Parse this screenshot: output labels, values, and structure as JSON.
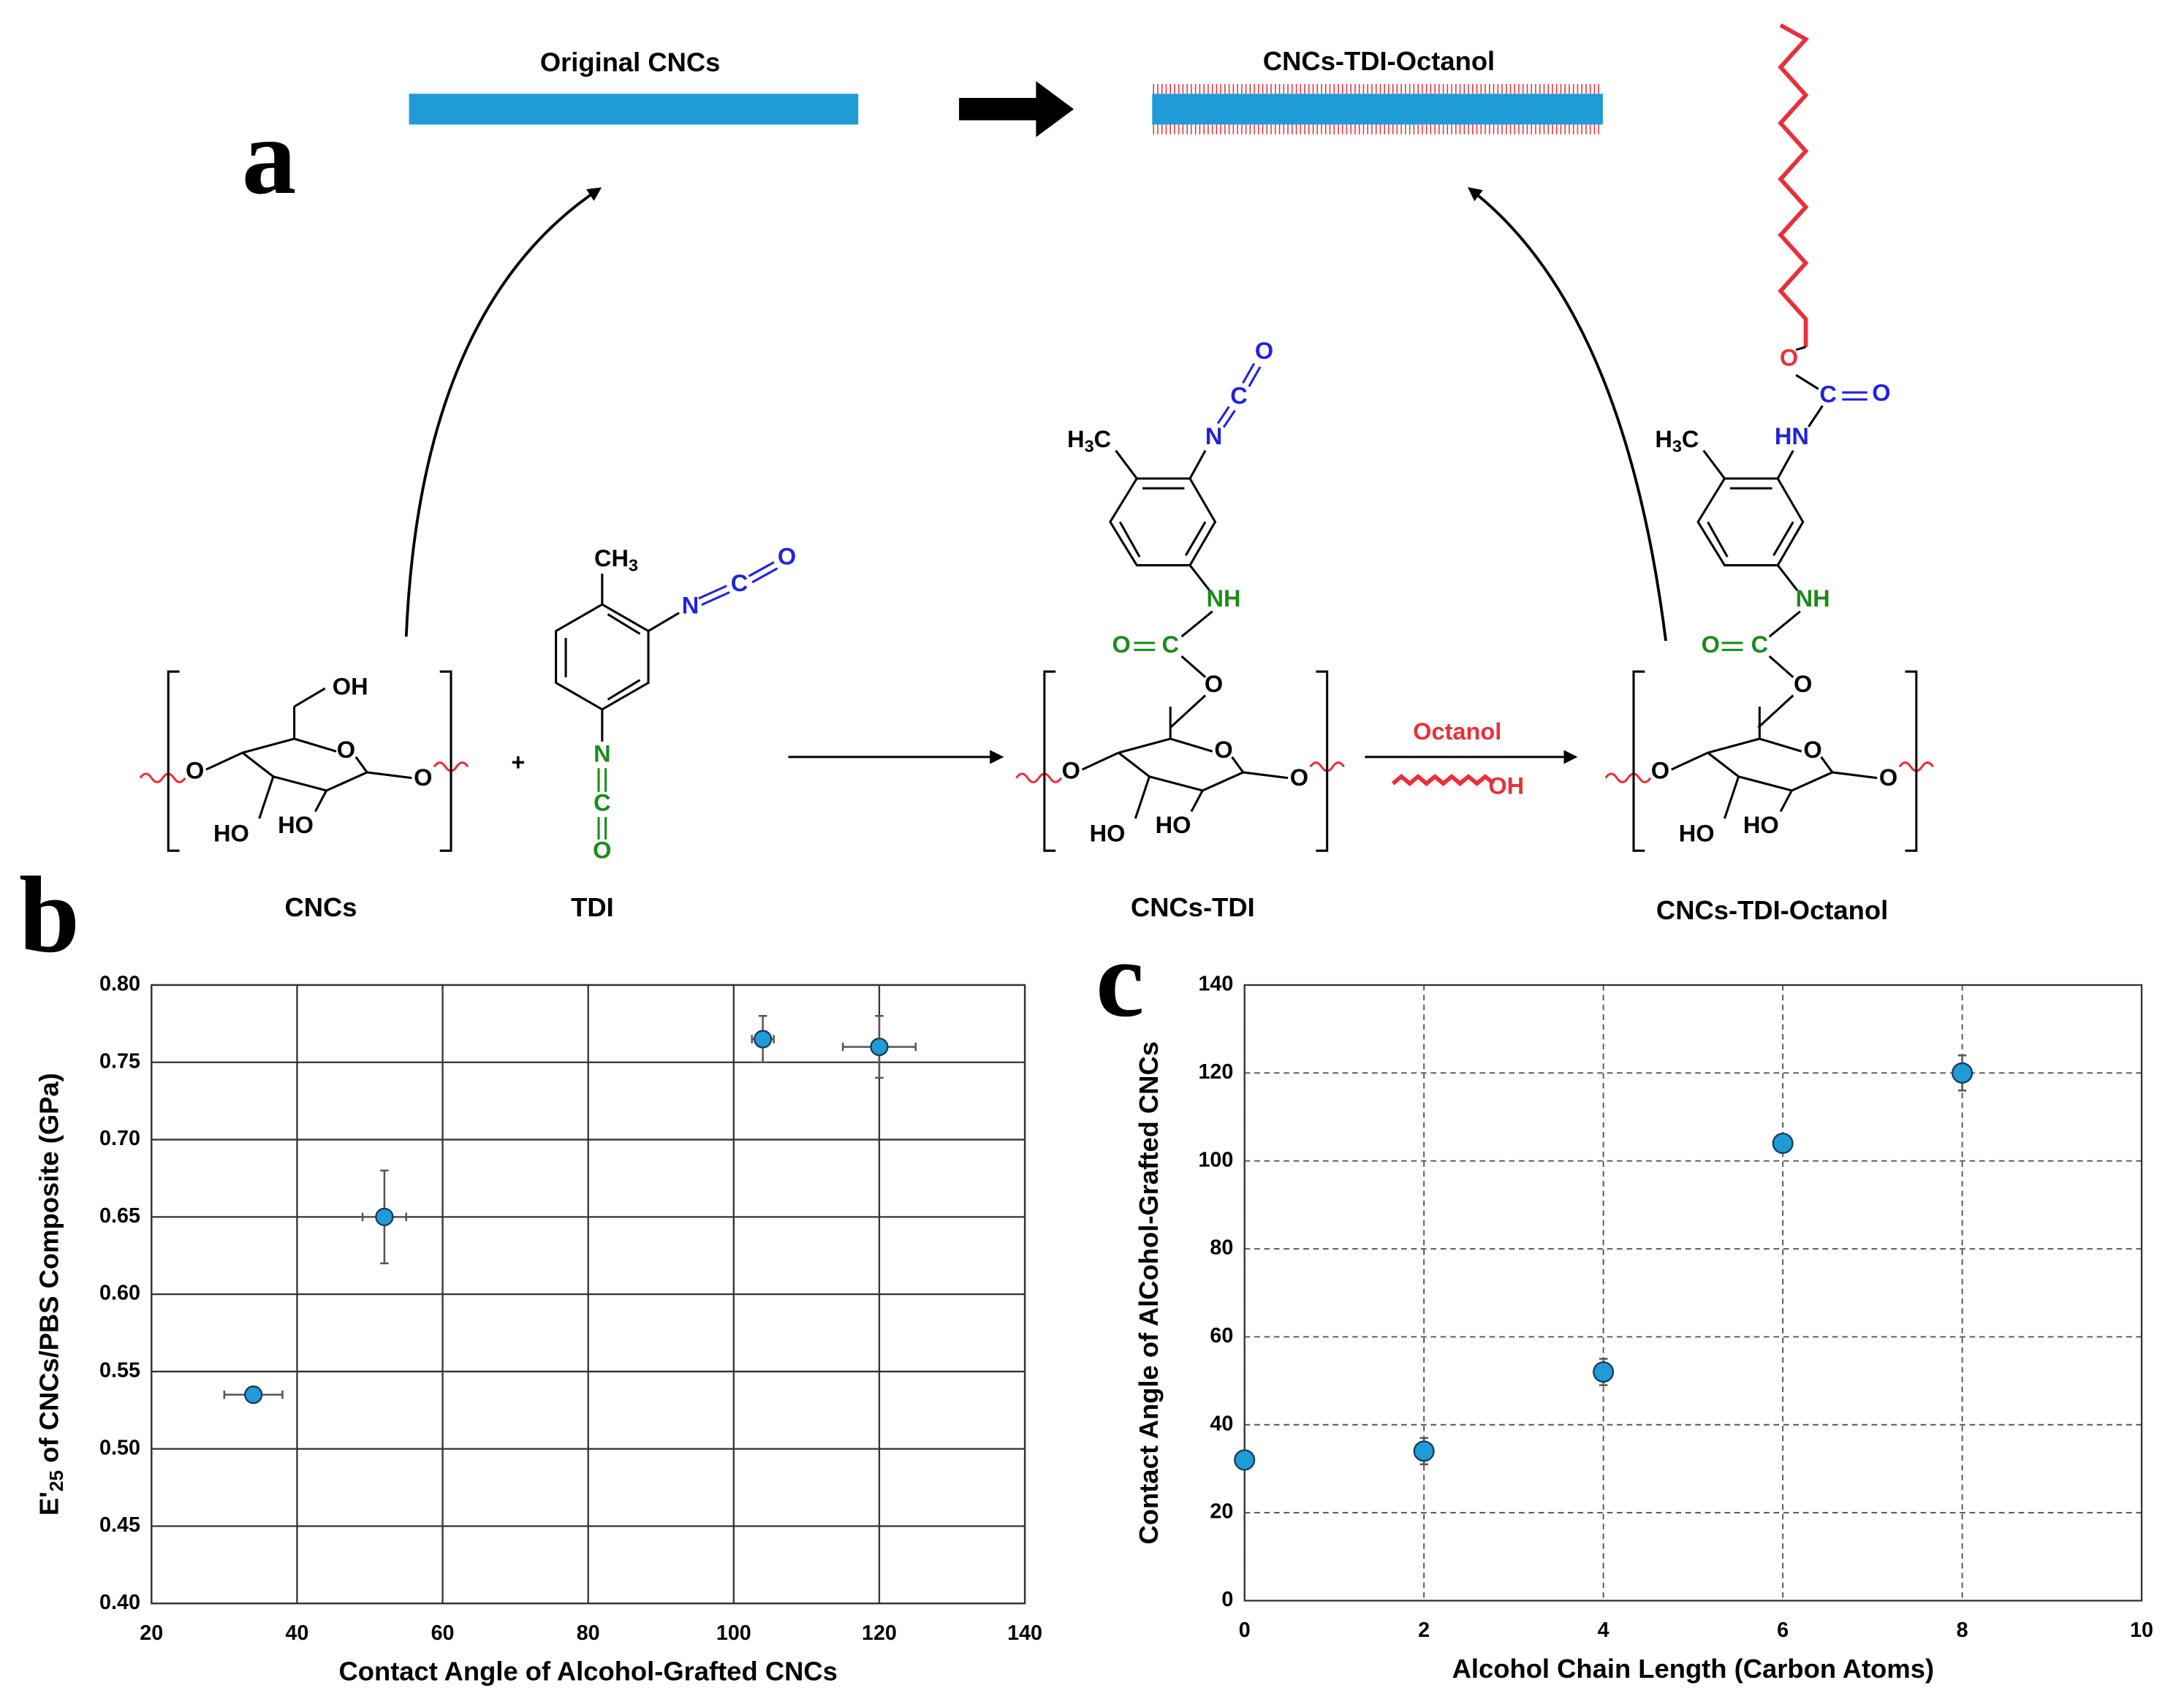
{
  "panel_labels": [
    "a",
    "b",
    "c"
  ],
  "diagram": {
    "top_labels": [
      "Original CNCs",
      "CNCs-TDI-Octanol"
    ],
    "compound_names": [
      "CNCs",
      "TDI",
      "CNCs-TDI",
      "CNCs-TDI-Octanol"
    ],
    "reagent": "Octanol",
    "atom_labels": [
      "OH",
      "O",
      "O",
      "O",
      "HO",
      "HO",
      [
        "CH",
        "3"
      ],
      "N",
      "C",
      "O",
      "N",
      "C",
      "O",
      "+",
      "O",
      "C",
      "N",
      [
        "H",
        "3",
        "C"
      ],
      "NH",
      "O",
      "C",
      "O",
      "O",
      "O",
      "O",
      "HO",
      "HO",
      "OH",
      "O",
      "C",
      "O",
      "HN",
      [
        "H",
        "3",
        "C"
      ],
      "NH",
      "O",
      "C",
      "O",
      "O",
      "O",
      "O",
      "HO",
      "HO"
    ]
  },
  "chart_data": [
    {
      "type": "scatter",
      "xlabel": "Contact Angle of Alcohol-Grafted CNCs",
      "ylabel": [
        "E'",
        "25",
        " of CNCs/PBS Composite (GPa)"
      ],
      "x": [
        34,
        52,
        104,
        120
      ],
      "values": [
        0.535,
        0.65,
        0.765,
        0.76
      ],
      "x_errors": [
        4,
        3,
        1.5,
        5
      ],
      "y_errors": [
        0.003,
        0.03,
        0.015,
        0.02
      ],
      "color": "#1f9bd7",
      "xlim": [
        20,
        140
      ],
      "xticks": [
        20,
        40,
        60,
        80,
        100,
        120,
        140
      ],
      "ylim": [
        0.4,
        0.8
      ],
      "yticks": [
        {
          "value": 0.4,
          "label": "0.40"
        },
        0.45,
        {
          "value": 0.5,
          "label": "0.50"
        },
        0.55,
        {
          "value": 0.6,
          "label": "0.60"
        },
        0.65,
        {
          "value": 0.7,
          "label": "0.70"
        },
        0.75,
        {
          "value": 0.8,
          "label": "0.80"
        }
      ],
      "grid": true,
      "grid_style": "solid"
    },
    {
      "type": "scatter",
      "xlabel": "Alcohol Chain Length (Carbon Atoms)",
      "ylabel": "Contact Angle of AlCohol-Grafted CNCs",
      "x": [
        0,
        2,
        4,
        6,
        8
      ],
      "values": [
        32,
        34,
        52,
        104,
        120
      ],
      "y_errors": [
        1,
        3,
        3,
        1,
        4
      ],
      "color": "#1f9bd7",
      "xlim": [
        0,
        10
      ],
      "xticks": [
        0,
        2,
        4,
        6,
        8,
        10
      ],
      "ylim": [
        0,
        140
      ],
      "yticks": [
        0,
        20,
        40,
        60,
        80,
        100,
        120,
        140
      ],
      "grid": true,
      "grid_style": "dashed"
    }
  ]
}
